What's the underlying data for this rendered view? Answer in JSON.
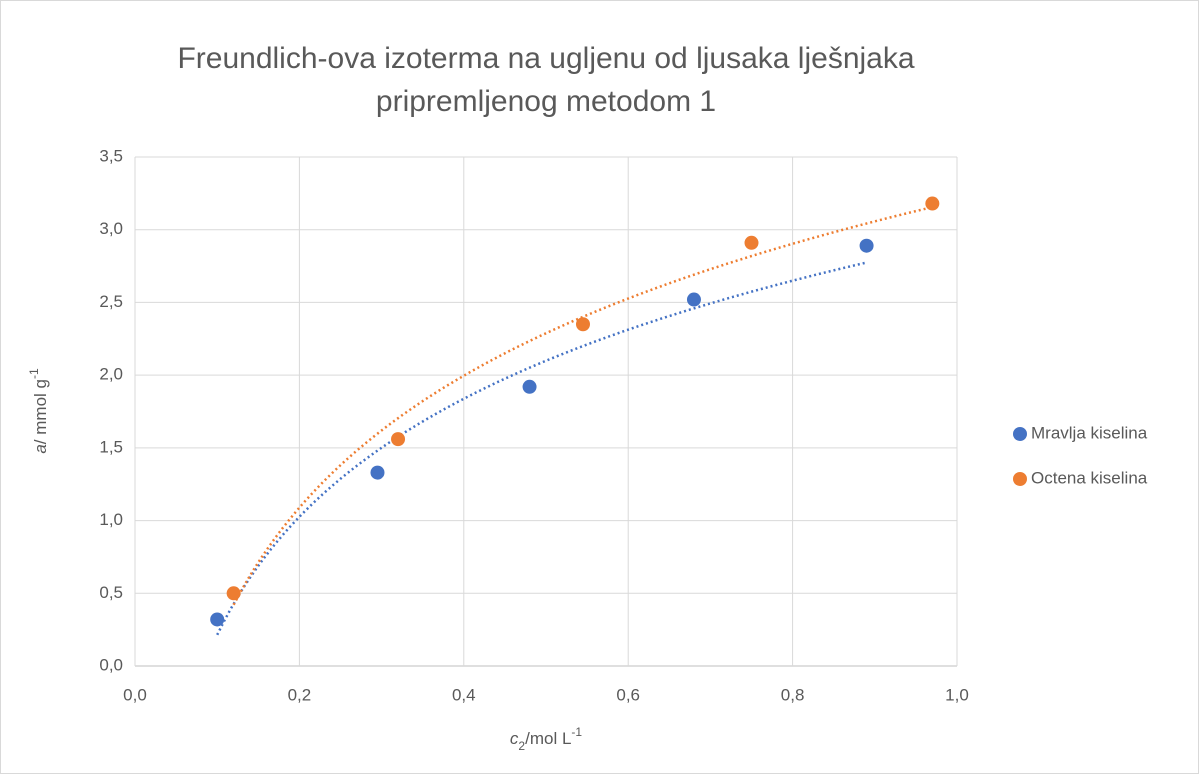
{
  "chart_data": {
    "type": "scatter",
    "title": [
      "Freundlich-ova izoterma na ugljenu od ljusaka lješnjaka",
      "pripremljenog metodom 1"
    ],
    "xlabel": [
      {
        "text": "c",
        "style": "italic"
      },
      {
        "text": "2",
        "style": "sub"
      },
      {
        "text": "/mol L",
        "style": "normal"
      },
      {
        "text": "-1",
        "style": "sup"
      }
    ],
    "ylabel": [
      {
        "text": "a",
        "style": "italic"
      },
      {
        "text": "/ mmol g",
        "style": "normal"
      },
      {
        "text": "-1",
        "style": "sup"
      }
    ],
    "series": [
      {
        "name": "Mravlja kiselina",
        "color": "#4472c4",
        "x": [
          0.1,
          0.295,
          0.48,
          0.68,
          0.89
        ],
        "values": [
          0.32,
          1.33,
          1.92,
          2.52,
          2.89
        ]
      },
      {
        "name": "Octena kiselina",
        "color": "#ed7d31",
        "x": [
          0.12,
          0.32,
          0.545,
          0.75,
          0.97
        ],
        "values": [
          0.5,
          1.56,
          2.35,
          2.91,
          3.18
        ]
      }
    ],
    "trendline": "logarithmic",
    "xlim": [
      0,
      1
    ],
    "ylim": [
      0,
      3.5
    ],
    "xticks": [
      {
        "value": 0,
        "label": "0,0"
      },
      {
        "value": 0.2,
        "label": "0,2"
      },
      {
        "value": 0.4,
        "label": "0,4"
      },
      {
        "value": 0.6,
        "label": "0,6"
      },
      {
        "value": 0.8,
        "label": "0,8"
      },
      {
        "value": 1,
        "label": "1,0"
      }
    ],
    "yticks": [
      {
        "value": 0,
        "label": "0,0"
      },
      {
        "value": 0.5,
        "label": "0,5"
      },
      {
        "value": 1,
        "label": "1,0"
      },
      {
        "value": 1.5,
        "label": "1,5"
      },
      {
        "value": 2,
        "label": "2,0"
      },
      {
        "value": 2.5,
        "label": "2,5"
      },
      {
        "value": 3,
        "label": "3,0"
      },
      {
        "value": 3.5,
        "label": "3,5"
      }
    ],
    "grid": true,
    "legend": "right"
  }
}
